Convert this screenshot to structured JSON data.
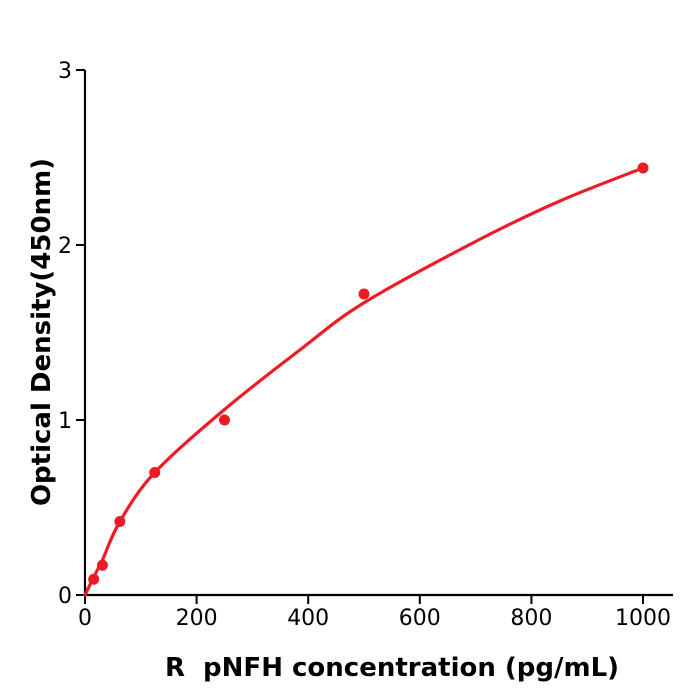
{
  "figure": {
    "background_color": "#ffffff"
  },
  "chart_data": {
    "type": "scatter",
    "title": "",
    "xlabel": "R  pNFH concentration (pg/mL)",
    "ylabel": "Optical Density(450nm)",
    "xlim": [
      0,
      1053
    ],
    "ylim": [
      0,
      3
    ],
    "xticks": [
      0,
      200,
      400,
      600,
      800,
      1000
    ],
    "yticks": [
      0,
      1,
      2,
      3
    ],
    "grid": false,
    "legend": null,
    "marker_color": "#ED1C24",
    "line_color": "#ED1C24",
    "axis_color": "#000000",
    "text_color": "#000000",
    "series": [
      {
        "name": "standard-data-points",
        "type": "scatter",
        "x": [
          15.6,
          31.25,
          62.5,
          125,
          250,
          500,
          1000
        ],
        "y": [
          0.09,
          0.17,
          0.42,
          0.7,
          1.0,
          1.72,
          2.44
        ]
      },
      {
        "name": "fitted-curve",
        "type": "line",
        "x": [
          0,
          16,
          31.25,
          62.5,
          125,
          250,
          385,
          500,
          700,
          850,
          1000
        ],
        "y": [
          0,
          0.105,
          0.2,
          0.42,
          0.7,
          1.06,
          1.4,
          1.67,
          2.02,
          2.25,
          2.44
        ]
      }
    ]
  }
}
